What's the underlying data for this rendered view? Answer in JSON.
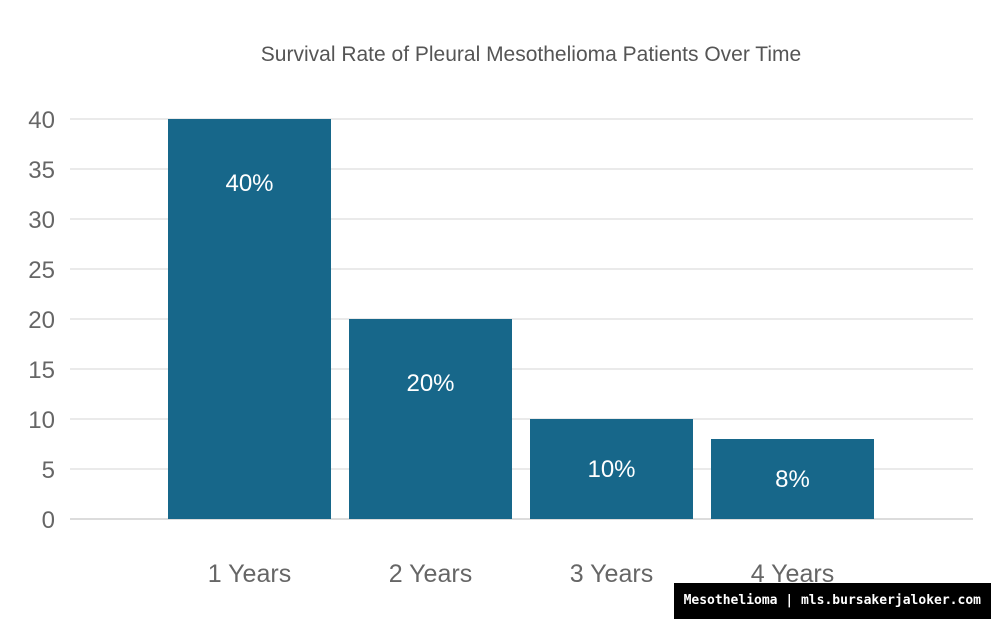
{
  "chart_data": {
    "type": "bar",
    "title": "Survival Rate of Pleural Mesothelioma Patients Over Time",
    "categories": [
      "1 Years",
      "2 Years",
      "3 Years",
      "4 Years"
    ],
    "values": [
      40,
      20,
      10,
      8
    ],
    "data_labels": [
      "40%",
      "20%",
      "10%",
      "8%"
    ],
    "ylim": [
      0,
      40
    ],
    "yticks": [
      0,
      5,
      10,
      15,
      20,
      25,
      30,
      35,
      40
    ],
    "grid": true,
    "bar_color": "#17678a"
  },
  "watermark": "Mesothelioma | mls.bursakerjaloker.com"
}
